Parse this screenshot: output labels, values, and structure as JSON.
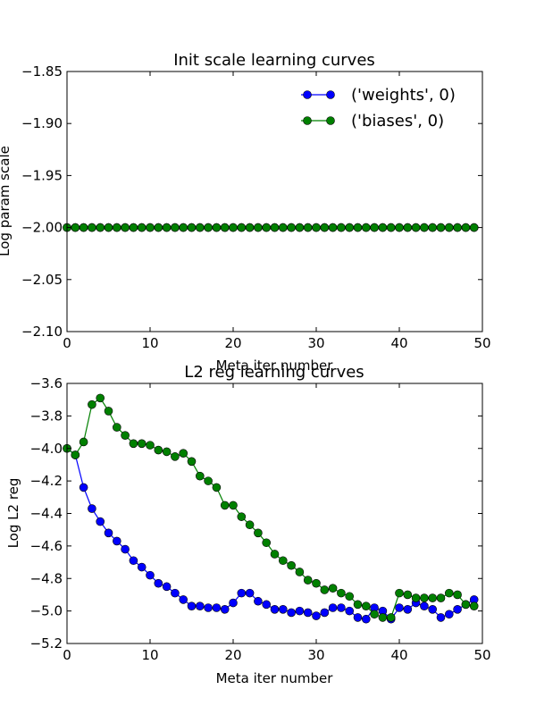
{
  "chart_data": [
    {
      "type": "line",
      "title": "Init scale learning curves",
      "xlabel": "Meta iter number",
      "ylabel": "Log param scale",
      "xlim": [
        0,
        50
      ],
      "ylim": [
        -2.1,
        -1.85
      ],
      "xticks": [
        0,
        10,
        20,
        30,
        40,
        50
      ],
      "yticks": [
        -2.1,
        -2.05,
        -2.0,
        -1.95,
        -1.9,
        -1.85
      ],
      "xtick_labels": [
        "0",
        "10",
        "20",
        "30",
        "40",
        "50"
      ],
      "ytick_labels": [
        "−2.10",
        "−2.05",
        "−2.00",
        "−1.95",
        "−1.90",
        "−1.85"
      ],
      "grid": false,
      "legend": "top-right",
      "series": [
        {
          "name": "('weights', 0)",
          "color": "#0000ff",
          "x": [
            0,
            1,
            2,
            3,
            4,
            5,
            6,
            7,
            8,
            9,
            10,
            11,
            12,
            13,
            14,
            15,
            16,
            17,
            18,
            19,
            20,
            21,
            22,
            23,
            24,
            25,
            26,
            27,
            28,
            29,
            30,
            31,
            32,
            33,
            34,
            35,
            36,
            37,
            38,
            39,
            40,
            41,
            42,
            43,
            44,
            45,
            46,
            47,
            48,
            49
          ],
          "values": [
            -2,
            -2,
            -2,
            -2,
            -2,
            -2,
            -2,
            -2,
            -2,
            -2,
            -2,
            -2,
            -2,
            -2,
            -2,
            -2,
            -2,
            -2,
            -2,
            -2,
            -2,
            -2,
            -2,
            -2,
            -2,
            -2,
            -2,
            -2,
            -2,
            -2,
            -2,
            -2,
            -2,
            -2,
            -2,
            -2,
            -2,
            -2,
            -2,
            -2,
            -2,
            -2,
            -2,
            -2,
            -2,
            -2,
            -2,
            -2,
            -2,
            -2
          ]
        },
        {
          "name": "('biases', 0)",
          "color": "#008000",
          "x": [
            0,
            1,
            2,
            3,
            4,
            5,
            6,
            7,
            8,
            9,
            10,
            11,
            12,
            13,
            14,
            15,
            16,
            17,
            18,
            19,
            20,
            21,
            22,
            23,
            24,
            25,
            26,
            27,
            28,
            29,
            30,
            31,
            32,
            33,
            34,
            35,
            36,
            37,
            38,
            39,
            40,
            41,
            42,
            43,
            44,
            45,
            46,
            47,
            48,
            49
          ],
          "values": [
            -2,
            -2,
            -2,
            -2,
            -2,
            -2,
            -2,
            -2,
            -2,
            -2,
            -2,
            -2,
            -2,
            -2,
            -2,
            -2,
            -2,
            -2,
            -2,
            -2,
            -2,
            -2,
            -2,
            -2,
            -2,
            -2,
            -2,
            -2,
            -2,
            -2,
            -2,
            -2,
            -2,
            -2,
            -2,
            -2,
            -2,
            -2,
            -2,
            -2,
            -2,
            -2,
            -2,
            -2,
            -2,
            -2,
            -2,
            -2,
            -2,
            -2
          ]
        }
      ]
    },
    {
      "type": "line",
      "title": "L2 reg learning curves",
      "xlabel": "Meta iter number",
      "ylabel": "Log L2 reg",
      "xlim": [
        0,
        50
      ],
      "ylim": [
        -5.2,
        -3.6
      ],
      "xticks": [
        0,
        10,
        20,
        30,
        40,
        50
      ],
      "yticks": [
        -5.2,
        -5.0,
        -4.8,
        -4.6,
        -4.4,
        -4.2,
        -4.0,
        -3.8,
        -3.6
      ],
      "xtick_labels": [
        "0",
        "10",
        "20",
        "30",
        "40",
        "50"
      ],
      "ytick_labels": [
        "−5.2",
        "−5.0",
        "−4.8",
        "−4.6",
        "−4.4",
        "−4.2",
        "−4.0",
        "−3.8",
        "−3.6"
      ],
      "grid": false,
      "series": [
        {
          "name": "('weights', 0)",
          "color": "#0000ff",
          "x": [
            0,
            1,
            2,
            3,
            4,
            5,
            6,
            7,
            8,
            9,
            10,
            11,
            12,
            13,
            14,
            15,
            16,
            17,
            18,
            19,
            20,
            21,
            22,
            23,
            24,
            25,
            26,
            27,
            28,
            29,
            30,
            31,
            32,
            33,
            34,
            35,
            36,
            37,
            38,
            39,
            40,
            41,
            42,
            43,
            44,
            45,
            46,
            47,
            48,
            49
          ],
          "values": [
            -4.0,
            -4.04,
            -4.24,
            -4.37,
            -4.45,
            -4.52,
            -4.57,
            -4.62,
            -4.69,
            -4.73,
            -4.78,
            -4.83,
            -4.85,
            -4.89,
            -4.93,
            -4.97,
            -4.97,
            -4.98,
            -4.98,
            -4.99,
            -4.95,
            -4.89,
            -4.89,
            -4.94,
            -4.96,
            -4.99,
            -4.99,
            -5.01,
            -5.0,
            -5.01,
            -5.03,
            -5.01,
            -4.98,
            -4.98,
            -5.0,
            -5.04,
            -5.05,
            -4.98,
            -5.0,
            -5.05,
            -4.98,
            -4.99,
            -4.95,
            -4.97,
            -4.99,
            -5.04,
            -5.02,
            -4.99,
            -4.96,
            -4.93
          ]
        },
        {
          "name": "('biases', 0)",
          "color": "#008000",
          "x": [
            0,
            1,
            2,
            3,
            4,
            5,
            6,
            7,
            8,
            9,
            10,
            11,
            12,
            13,
            14,
            15,
            16,
            17,
            18,
            19,
            20,
            21,
            22,
            23,
            24,
            25,
            26,
            27,
            28,
            29,
            30,
            31,
            32,
            33,
            34,
            35,
            36,
            37,
            38,
            39,
            40,
            41,
            42,
            43,
            44,
            45,
            46,
            47,
            48,
            49
          ],
          "values": [
            -4.0,
            -4.04,
            -3.96,
            -3.73,
            -3.69,
            -3.77,
            -3.87,
            -3.92,
            -3.97,
            -3.97,
            -3.98,
            -4.01,
            -4.02,
            -4.05,
            -4.03,
            -4.08,
            -4.17,
            -4.2,
            -4.24,
            -4.35,
            -4.35,
            -4.42,
            -4.47,
            -4.52,
            -4.58,
            -4.65,
            -4.69,
            -4.72,
            -4.76,
            -4.81,
            -4.83,
            -4.87,
            -4.86,
            -4.89,
            -4.91,
            -4.96,
            -4.97,
            -5.02,
            -5.04,
            -5.04,
            -4.89,
            -4.9,
            -4.92,
            -4.92,
            -4.92,
            -4.92,
            -4.89,
            -4.9,
            -4.96,
            -4.97
          ]
        }
      ]
    }
  ]
}
